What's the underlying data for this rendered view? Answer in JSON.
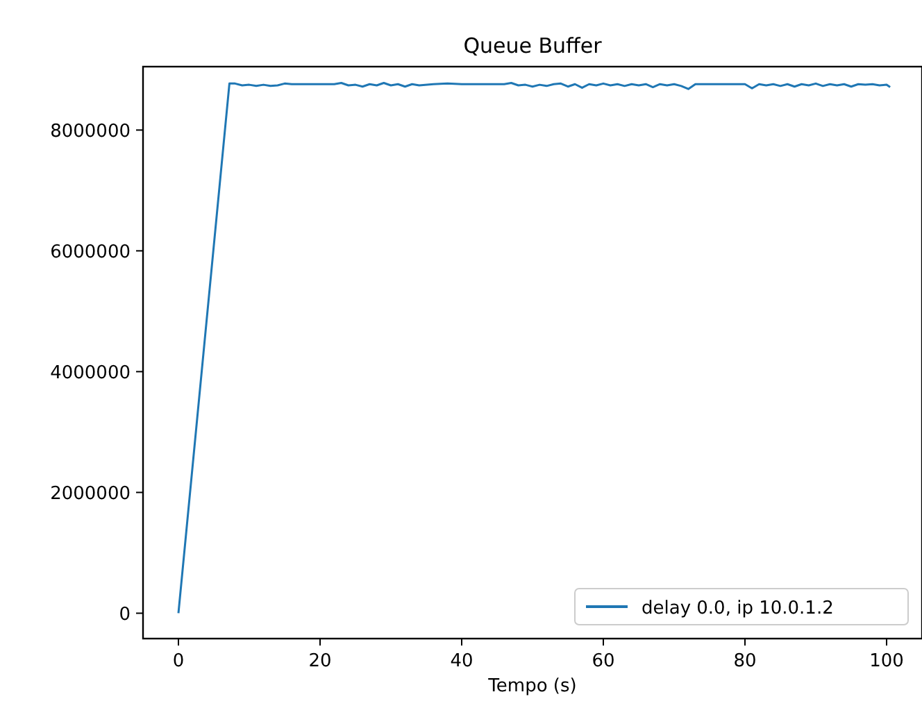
{
  "chart_data": {
    "type": "line",
    "title": "Queue Buffer",
    "xlabel": "Tempo (s)",
    "xlim": [
      -5,
      105
    ],
    "ylim": [
      -420000,
      9050000
    ],
    "xticks": [
      0,
      20,
      40,
      60,
      80,
      100
    ],
    "yticks": [
      0,
      2000000,
      4000000,
      6000000,
      8000000
    ],
    "legend": "bottom right",
    "grid": false,
    "series": [
      {
        "name": "delay 0.0, ip 10.0.1.2",
        "color": "#1f77b4",
        "x": [
          0,
          7.2,
          8,
          9,
          10,
          11,
          12,
          13,
          14,
          15,
          16,
          18,
          20,
          22,
          23,
          24,
          25,
          26,
          27,
          28,
          29,
          30,
          31,
          32,
          33,
          34,
          36,
          38,
          40,
          42,
          44,
          46,
          47,
          48,
          49,
          50,
          51,
          52,
          53,
          54,
          55,
          56,
          57,
          58,
          59,
          60,
          61,
          62,
          63,
          64,
          65,
          66,
          67,
          68,
          69,
          70,
          71,
          72,
          73,
          74,
          75,
          76,
          78,
          80,
          81,
          82,
          83,
          84,
          85,
          86,
          87,
          88,
          89,
          90,
          91,
          92,
          93,
          94,
          95,
          96,
          97,
          98,
          99,
          100,
          100.5
        ],
        "values": [
          0,
          8770000,
          8770000,
          8740000,
          8750000,
          8730000,
          8750000,
          8730000,
          8740000,
          8770000,
          8760000,
          8760000,
          8760000,
          8760000,
          8780000,
          8740000,
          8750000,
          8720000,
          8760000,
          8740000,
          8780000,
          8740000,
          8760000,
          8720000,
          8760000,
          8740000,
          8760000,
          8770000,
          8760000,
          8760000,
          8760000,
          8760000,
          8780000,
          8740000,
          8750000,
          8720000,
          8750000,
          8730000,
          8760000,
          8770000,
          8720000,
          8760000,
          8700000,
          8760000,
          8740000,
          8770000,
          8740000,
          8760000,
          8730000,
          8760000,
          8740000,
          8760000,
          8710000,
          8760000,
          8740000,
          8760000,
          8730000,
          8680000,
          8760000,
          8760000,
          8760000,
          8760000,
          8760000,
          8760000,
          8690000,
          8760000,
          8740000,
          8760000,
          8730000,
          8760000,
          8720000,
          8760000,
          8740000,
          8770000,
          8730000,
          8760000,
          8740000,
          8760000,
          8720000,
          8760000,
          8750000,
          8760000,
          8740000,
          8750000,
          8710000
        ]
      }
    ]
  }
}
